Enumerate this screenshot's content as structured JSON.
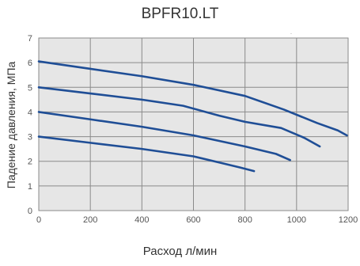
{
  "chart_data": {
    "type": "line",
    "title": "BPFR10.LT",
    "xlabel": "Расход л/мин",
    "ylabel": "Падение давления, МПа",
    "xlim": [
      0,
      1200
    ],
    "ylim": [
      0,
      7
    ],
    "xticks": [
      "0",
      "200",
      "400",
      "600",
      "800",
      "1000",
      "1200"
    ],
    "yticks": [
      "0",
      "1",
      "2",
      "3",
      "4",
      "5",
      "6",
      "7"
    ],
    "grid": true,
    "legend": "none",
    "series": [
      {
        "points": [
          [
            0,
            3.0
          ],
          [
            200,
            2.75
          ],
          [
            400,
            2.5
          ],
          [
            600,
            2.2
          ],
          [
            700,
            1.95
          ],
          [
            780,
            1.75
          ],
          [
            835,
            1.6
          ]
        ]
      },
      {
        "points": [
          [
            0,
            4.0
          ],
          [
            200,
            3.7
          ],
          [
            400,
            3.4
          ],
          [
            600,
            3.05
          ],
          [
            800,
            2.6
          ],
          [
            920,
            2.3
          ],
          [
            975,
            2.05
          ]
        ]
      },
      {
        "points": [
          [
            0,
            5.0
          ],
          [
            200,
            4.75
          ],
          [
            400,
            4.5
          ],
          [
            560,
            4.25
          ],
          [
            700,
            3.85
          ],
          [
            800,
            3.6
          ],
          [
            940,
            3.35
          ],
          [
            1030,
            2.95
          ],
          [
            1090,
            2.6
          ]
        ]
      },
      {
        "points": [
          [
            0,
            6.05
          ],
          [
            200,
            5.75
          ],
          [
            400,
            5.45
          ],
          [
            600,
            5.1
          ],
          [
            800,
            4.65
          ],
          [
            950,
            4.1
          ],
          [
            1080,
            3.55
          ],
          [
            1160,
            3.25
          ],
          [
            1195,
            3.05
          ]
        ]
      }
    ],
    "colors": {
      "line": "#1f4e96",
      "plot_bg": "#e6e6e6",
      "grid": "#8a8a8a",
      "axis_text": "#555555"
    }
  }
}
